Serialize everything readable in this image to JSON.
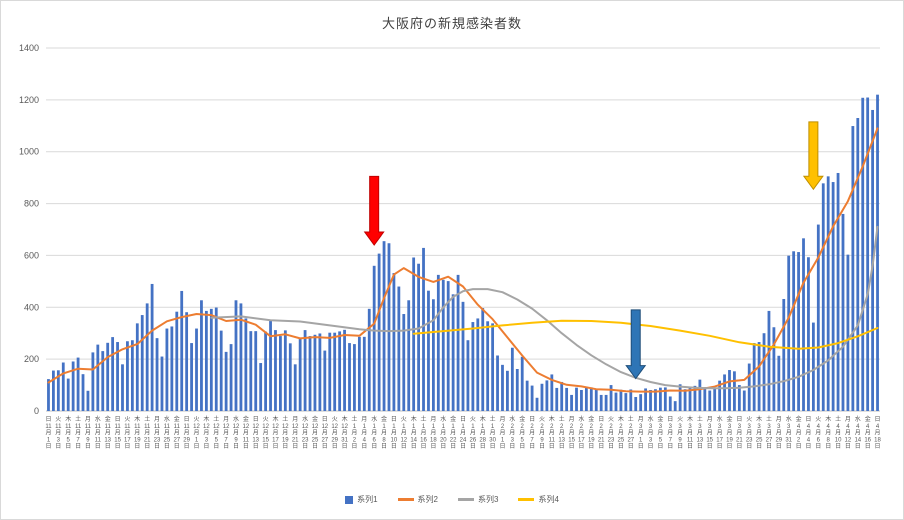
{
  "title": "大阪府の新規感染者数",
  "chart_data": {
    "type": "bar",
    "title": "大阪府の新規感染者数",
    "xlabel": "",
    "ylabel": "",
    "ylim": [
      0,
      1400
    ],
    "ytick_step": 200,
    "grid": "horizontal",
    "legend_position": "bottom",
    "x_unit": "daily dates from 2020-11-01 to 2021-04-18",
    "x_ticks_every": 2,
    "x_ticks": [
      [
        "日",
        11,
        1
      ],
      [
        "火",
        11,
        3
      ],
      [
        "木",
        11,
        5
      ],
      [
        "土",
        11,
        7
      ],
      [
        "月",
        11,
        9
      ],
      [
        "水",
        11,
        11
      ],
      [
        "金",
        11,
        13
      ],
      [
        "日",
        11,
        15
      ],
      [
        "火",
        11,
        17
      ],
      [
        "木",
        11,
        19
      ],
      [
        "土",
        11,
        21
      ],
      [
        "月",
        11,
        23
      ],
      [
        "水",
        11,
        25
      ],
      [
        "金",
        11,
        27
      ],
      [
        "日",
        11,
        29
      ],
      [
        "火",
        12,
        1
      ],
      [
        "木",
        12,
        3
      ],
      [
        "土",
        12,
        5
      ],
      [
        "月",
        12,
        7
      ],
      [
        "水",
        12,
        9
      ],
      [
        "金",
        12,
        11
      ],
      [
        "日",
        12,
        13
      ],
      [
        "火",
        12,
        15
      ],
      [
        "木",
        12,
        17
      ],
      [
        "土",
        12,
        19
      ],
      [
        "月",
        12,
        21
      ],
      [
        "水",
        12,
        23
      ],
      [
        "金",
        12,
        25
      ],
      [
        "日",
        12,
        27
      ],
      [
        "火",
        12,
        29
      ],
      [
        "木",
        12,
        31
      ],
      [
        "土",
        1,
        2
      ],
      [
        "月",
        1,
        4
      ],
      [
        "水",
        1,
        6
      ],
      [
        "金",
        1,
        8
      ],
      [
        "日",
        1,
        10
      ],
      [
        "火",
        1,
        12
      ],
      [
        "木",
        1,
        14
      ],
      [
        "土",
        1,
        16
      ],
      [
        "月",
        1,
        18
      ],
      [
        "水",
        1,
        20
      ],
      [
        "金",
        1,
        22
      ],
      [
        "日",
        1,
        24
      ],
      [
        "火",
        1,
        26
      ],
      [
        "木",
        1,
        28
      ],
      [
        "土",
        1,
        30
      ],
      [
        "月",
        2,
        1
      ],
      [
        "水",
        2,
        3
      ],
      [
        "金",
        2,
        5
      ],
      [
        "日",
        2,
        7
      ],
      [
        "火",
        2,
        9
      ],
      [
        "木",
        2,
        11
      ],
      [
        "土",
        2,
        13
      ],
      [
        "月",
        2,
        15
      ],
      [
        "水",
        2,
        17
      ],
      [
        "金",
        2,
        19
      ],
      [
        "日",
        2,
        21
      ],
      [
        "火",
        2,
        23
      ],
      [
        "木",
        2,
        25
      ],
      [
        "土",
        2,
        27
      ],
      [
        "月",
        3,
        1
      ],
      [
        "水",
        3,
        3
      ],
      [
        "金",
        3,
        5
      ],
      [
        "日",
        3,
        7
      ],
      [
        "火",
        3,
        9
      ],
      [
        "木",
        3,
        11
      ],
      [
        "土",
        3,
        13
      ],
      [
        "月",
        3,
        15
      ],
      [
        "水",
        3,
        17
      ],
      [
        "金",
        3,
        19
      ],
      [
        "日",
        3,
        21
      ],
      [
        "火",
        3,
        23
      ],
      [
        "木",
        3,
        25
      ],
      [
        "土",
        3,
        27
      ],
      [
        "月",
        3,
        29
      ],
      [
        "水",
        3,
        31
      ],
      [
        "金",
        4,
        2
      ],
      [
        "日",
        4,
        4
      ],
      [
        "火",
        4,
        6
      ],
      [
        "木",
        4,
        8
      ],
      [
        "土",
        4,
        10
      ],
      [
        "月",
        4,
        12
      ],
      [
        "水",
        4,
        14
      ],
      [
        "金",
        4,
        16
      ],
      [
        "日",
        4,
        18
      ]
    ],
    "series": [
      {
        "name": "系列1",
        "type": "bar",
        "color": "#4472C4",
        "values": [
          123,
          156,
          157,
          187,
          125,
          191,
          206,
          142,
          78,
          226,
          256,
          231,
          263,
          285,
          266,
          180,
          269,
          273,
          338,
          370,
          415,
          490,
          281,
          210,
          318,
          326,
          383,
          463,
          381,
          262,
          318,
          427,
          386,
          394,
          399,
          310,
          228,
          258,
          427,
          415,
          357,
          308,
          308,
          185,
          306,
          351,
          312,
          289,
          311,
          261,
          180,
          283,
          312,
          289,
          294,
          299,
          233,
          302,
          302,
          307,
          313,
          262,
          258,
          286,
          286,
          394,
          560,
          607,
          655,
          647,
          532,
          480,
          374,
          427,
          592,
          568,
          629,
          464,
          431,
          525,
          506,
          501,
          450,
          525,
          421,
          273,
          343,
          357,
          397,
          346,
          338,
          214,
          178,
          155,
          244,
          162,
          209,
          117,
          98,
          51,
          105,
          118,
          141,
          89,
          112,
          89,
          62,
          90,
          81,
          91,
          91,
          86,
          62,
          62,
          100,
          71,
          82,
          69,
          83,
          54,
          65,
          87,
          81,
          84,
          90,
          91,
          56,
          38,
          103,
          84,
          92,
          97,
          121,
          92,
          79,
          90,
          117,
          141,
          158,
          153,
          100,
          79,
          183,
          262,
          266,
          300,
          386,
          323,
          213,
          432,
          599,
          616,
          613,
          666,
          593,
          341,
          719,
          878,
          905,
          883,
          918,
          760,
          603,
          1099,
          1130,
          1208,
          1209,
          1161,
          1220
        ]
      },
      {
        "name": "系列2",
        "type": "line",
        "color": "#ED7D31",
        "points": [
          [
            0,
            110
          ],
          [
            3,
            145
          ],
          [
            6,
            163
          ],
          [
            9,
            160
          ],
          [
            12,
            208
          ],
          [
            15,
            238
          ],
          [
            18,
            258
          ],
          [
            21,
            310
          ],
          [
            24,
            346
          ],
          [
            27,
            362
          ],
          [
            30,
            374
          ],
          [
            33,
            370
          ],
          [
            36,
            347
          ],
          [
            39,
            352
          ],
          [
            42,
            333
          ],
          [
            45,
            288
          ],
          [
            48,
            296
          ],
          [
            51,
            280
          ],
          [
            54,
            285
          ],
          [
            57,
            282
          ],
          [
            60,
            293
          ],
          [
            63,
            290
          ],
          [
            66,
            337
          ],
          [
            68,
            435
          ],
          [
            70,
            526
          ],
          [
            72,
            551
          ],
          [
            75,
            517
          ],
          [
            78,
            498
          ],
          [
            81,
            518
          ],
          [
            84,
            480
          ],
          [
            87,
            410
          ],
          [
            90,
            354
          ],
          [
            93,
            284
          ],
          [
            96,
            214
          ],
          [
            99,
            148
          ],
          [
            102,
            120
          ],
          [
            105,
            101
          ],
          [
            108,
            95
          ],
          [
            111,
            84
          ],
          [
            114,
            82
          ],
          [
            117,
            76
          ],
          [
            120,
            75
          ],
          [
            123,
            75
          ],
          [
            126,
            79
          ],
          [
            129,
            78
          ],
          [
            132,
            84
          ],
          [
            135,
            94
          ],
          [
            138,
            114
          ],
          [
            141,
            120
          ],
          [
            144,
            172
          ],
          [
            147,
            257
          ],
          [
            150,
            360
          ],
          [
            153,
            495
          ],
          [
            156,
            592
          ],
          [
            159,
            712
          ],
          [
            162,
            809
          ],
          [
            165,
            943
          ],
          [
            168,
            1090
          ]
        ]
      },
      {
        "name": "系列3",
        "type": "line",
        "color": "#A5A5A5",
        "points": [
          [
            33,
            360
          ],
          [
            39,
            365
          ],
          [
            45,
            350
          ],
          [
            51,
            345
          ],
          [
            57,
            330
          ],
          [
            63,
            315
          ],
          [
            66,
            310
          ],
          [
            69,
            308
          ],
          [
            72,
            310
          ],
          [
            75,
            318
          ],
          [
            78,
            350
          ],
          [
            80,
            400
          ],
          [
            82,
            440
          ],
          [
            84,
            462
          ],
          [
            86,
            470
          ],
          [
            89,
            470
          ],
          [
            92,
            458
          ],
          [
            95,
            430
          ],
          [
            98,
            395
          ],
          [
            101,
            350
          ],
          [
            104,
            300
          ],
          [
            107,
            255
          ],
          [
            110,
            215
          ],
          [
            113,
            180
          ],
          [
            116,
            150
          ],
          [
            119,
            128
          ],
          [
            122,
            112
          ],
          [
            125,
            100
          ],
          [
            128,
            94
          ],
          [
            131,
            90
          ],
          [
            134,
            88
          ],
          [
            137,
            88
          ],
          [
            140,
            90
          ],
          [
            143,
            95
          ],
          [
            146,
            103
          ],
          [
            149,
            115
          ],
          [
            152,
            132
          ],
          [
            155,
            158
          ],
          [
            158,
            195
          ],
          [
            161,
            248
          ],
          [
            164,
            330
          ],
          [
            166,
            450
          ],
          [
            167,
            560
          ],
          [
            168,
            710
          ]
        ]
      },
      {
        "name": "系列4",
        "type": "line",
        "color": "#FFC000",
        "points": [
          [
            74,
            298
          ],
          [
            80,
            308
          ],
          [
            86,
            318
          ],
          [
            92,
            330
          ],
          [
            98,
            340
          ],
          [
            104,
            348
          ],
          [
            110,
            347
          ],
          [
            116,
            340
          ],
          [
            122,
            328
          ],
          [
            128,
            310
          ],
          [
            134,
            290
          ],
          [
            140,
            265
          ],
          [
            146,
            248
          ],
          [
            152,
            240
          ],
          [
            156,
            245
          ],
          [
            160,
            262
          ],
          [
            164,
            288
          ],
          [
            168,
            320
          ]
        ]
      }
    ],
    "annotations": [
      {
        "name": "red-arrow",
        "shape": "down-arrow",
        "color": "#FF0000",
        "stroke": "#C00000",
        "x_index": 66,
        "tip_value": 640,
        "tail_value": 905
      },
      {
        "name": "blue-arrow",
        "shape": "down-arrow",
        "color": "#2E75B6",
        "stroke": "#1F4E79",
        "x_index": 119,
        "tip_value": 125,
        "tail_value": 390
      },
      {
        "name": "yellow-arrow",
        "shape": "down-arrow",
        "color": "#FFC000",
        "stroke": "#BF8F00",
        "x_index": 155,
        "tip_value": 855,
        "tail_value": 1115
      }
    ],
    "ui_colors": {
      "grid": "#D9D9D9",
      "axis": "#BFBFBF",
      "text": "#595959"
    }
  }
}
